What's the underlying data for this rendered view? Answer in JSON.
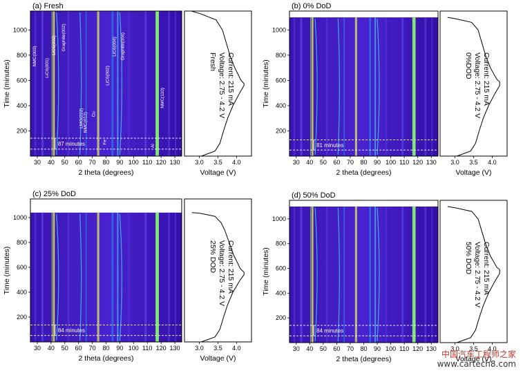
{
  "chart_data": [
    {
      "type": "heatmap",
      "panel_label": "(a) Fresh",
      "xlabel": "2 theta (degrees)",
      "ylabel": "Time (minutes)",
      "xlim": [
        25,
        135
      ],
      "ylim": [
        0,
        1150
      ],
      "xticks": [
        30,
        40,
        50,
        60,
        70,
        80,
        90,
        100,
        110,
        120,
        130
      ],
      "yticks": [
        200,
        400,
        600,
        800,
        1000
      ],
      "data_end_time": 1150,
      "marker_lines_time": [
        55,
        142
      ],
      "interval_label": "87 minutes",
      "peak_labels": [
        "NMC(003)",
        "LiC6(001)",
        "LiC6(002)",
        "Graphite(002)",
        "LMO(222)",
        "NMC(012)",
        "Cu",
        "Fe",
        "LiC6(002)",
        "LiC6(004)",
        "Graphite(004)",
        "Al",
        "NMC(110)"
      ],
      "voltage": {
        "xlabel": "Voltage (V)",
        "xlim": [
          2.6,
          4.4
        ],
        "xticks": [
          3.0,
          3.5,
          4.0
        ],
        "condition": "Fresh",
        "voltage_range": "Voltage: 2.75 - 4.2 V",
        "current": "Current: 215 mA",
        "time": [
          0,
          40,
          100,
          200,
          300,
          400,
          500,
          560,
          575,
          600,
          700,
          800,
          900,
          1000,
          1080,
          1130,
          1150
        ],
        "volts": [
          3.05,
          3.42,
          3.55,
          3.65,
          3.76,
          3.9,
          4.08,
          4.2,
          4.2,
          4.12,
          3.95,
          3.82,
          3.72,
          3.62,
          3.45,
          3.02,
          2.78
        ]
      }
    },
    {
      "type": "heatmap",
      "panel_label": "(b) 0% DoD",
      "xlabel": "2 theta (degrees)",
      "ylabel": "Time (minutes)",
      "xlim": [
        25,
        135
      ],
      "ylim": [
        0,
        1150
      ],
      "xticks": [
        30,
        40,
        50,
        60,
        70,
        80,
        90,
        100,
        110,
        120,
        130
      ],
      "yticks": [
        200,
        400,
        600,
        800,
        1000
      ],
      "data_end_time": 1100,
      "marker_lines_time": [
        48,
        129
      ],
      "interval_label": "81 minutes",
      "peak_labels": [],
      "voltage": {
        "xlabel": "Voltage (V)",
        "xlim": [
          2.6,
          4.4
        ],
        "xticks": [
          3.0,
          3.5,
          4.0
        ],
        "condition": "0%DOD",
        "voltage_range": "Voltage: 2.75 - 4.2 V",
        "current": "Current: 215 mA",
        "time": [
          0,
          40,
          100,
          200,
          300,
          400,
          500,
          560,
          590,
          610,
          700,
          800,
          900,
          1000,
          1060,
          1090,
          1100
        ],
        "volts": [
          3.05,
          3.42,
          3.55,
          3.65,
          3.76,
          3.9,
          4.08,
          4.2,
          4.2,
          4.12,
          3.95,
          3.82,
          3.72,
          3.62,
          3.45,
          3.0,
          2.8
        ]
      }
    },
    {
      "type": "heatmap",
      "panel_label": "(c) 25% DoD",
      "xlabel": "2 theta (degrees)",
      "ylabel": "Time (minutes)",
      "xlim": [
        25,
        135
      ],
      "ylim": [
        0,
        1150
      ],
      "xticks": [
        30,
        40,
        50,
        60,
        70,
        80,
        90,
        100,
        110,
        120,
        130
      ],
      "yticks": [
        200,
        400,
        600,
        800,
        1000
      ],
      "data_end_time": 1040,
      "marker_lines_time": [
        52,
        136
      ],
      "interval_label": "84 minutes",
      "peak_labels": [],
      "voltage": {
        "xlabel": "Voltage (V)",
        "xlim": [
          2.6,
          4.4
        ],
        "xticks": [
          3.0,
          3.5,
          4.0
        ],
        "condition": "25% DOD",
        "voltage_range": "Voltage: 2.75 - 4.2 V",
        "current": "Current: 215 mA",
        "time": [
          0,
          40,
          100,
          200,
          300,
          400,
          500,
          540,
          560,
          590,
          700,
          800,
          900,
          960,
          1010,
          1035,
          1040
        ],
        "volts": [
          3.05,
          3.42,
          3.55,
          3.65,
          3.76,
          3.9,
          4.1,
          4.2,
          4.2,
          4.1,
          3.92,
          3.8,
          3.68,
          3.58,
          3.42,
          3.02,
          2.8
        ]
      }
    },
    {
      "type": "heatmap",
      "panel_label": "(d) 50% DoD",
      "xlabel": "2 theta (degrees)",
      "ylabel": "Time (minutes)",
      "xlim": [
        25,
        135
      ],
      "ylim": [
        0,
        1150
      ],
      "xticks": [
        30,
        40,
        50,
        60,
        70,
        80,
        90,
        100,
        110,
        120,
        130
      ],
      "yticks": [
        200,
        400,
        600,
        800,
        1000
      ],
      "data_end_time": 1100,
      "marker_lines_time": [
        55,
        139
      ],
      "interval_label": "84 minutes",
      "peak_labels": [],
      "voltage": {
        "xlabel": "Voltage (V)",
        "xlim": [
          2.6,
          4.4
        ],
        "xticks": [
          3.0,
          3.5,
          4.0
        ],
        "condition": "50% DOD",
        "voltage_range": "Voltage: 2.75 - 4.2 V",
        "current": "Current: 215 mA",
        "time": [
          0,
          40,
          100,
          200,
          300,
          400,
          500,
          560,
          590,
          610,
          700,
          800,
          900,
          1000,
          1060,
          1090,
          1100
        ],
        "volts": [
          3.05,
          3.42,
          3.55,
          3.65,
          3.76,
          3.9,
          4.08,
          4.2,
          4.2,
          4.12,
          3.95,
          3.82,
          3.72,
          3.62,
          3.45,
          3.0,
          2.8
        ]
      }
    }
  ],
  "watermark": {
    "line1": "中国汽车工程师之家",
    "line2": "www.cartech8.com"
  }
}
